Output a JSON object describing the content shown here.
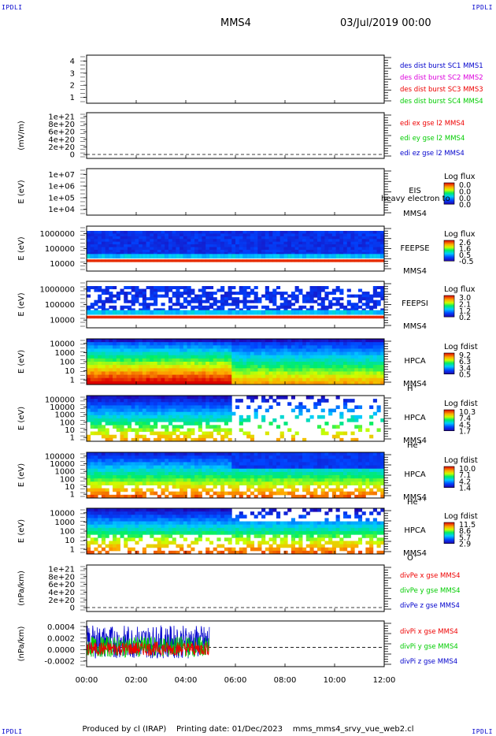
{
  "corner_label": "IPDLI",
  "header": {
    "spacecraft": "MMS4",
    "datetime": "03/Jul/2019 00:00"
  },
  "footer": {
    "produced_by": "Produced by cl (IRAP)",
    "printing_date": "Printing date: 01/Dec/2023",
    "script_name": "mms_mms4_srvy_vue_web2.cl"
  },
  "colors": {
    "frame": "#000000",
    "red": "#ee0000",
    "green": "#00cc00",
    "blue": "#0000cc",
    "magenta": "#dd00dd"
  },
  "chart_data": [
    {
      "type": "line",
      "panel": 1,
      "ylabel": "",
      "y_ticks": [
        "1",
        "2",
        "3",
        "4"
      ],
      "legend": [
        {
          "text": "des dist burst SC1 MMS1",
          "color": "#0000cc"
        },
        {
          "text": "des dist burst SC2 MMS2",
          "color": "#dd00dd"
        },
        {
          "text": "des dist burst SC3 MMS3",
          "color": "#ee0000"
        },
        {
          "text": "des dist burst SC4 MMS4",
          "color": "#00cc00"
        }
      ],
      "series": []
    },
    {
      "type": "line",
      "panel": 2,
      "ylabel": "(mV/m)",
      "y_ticks": [
        "0",
        "2e+20",
        "4e+20",
        "6e+20",
        "8e+20",
        "1e+21"
      ],
      "legend": [
        {
          "text": "edi ex gse l2 MMS4",
          "color": "#ee0000"
        },
        {
          "text": "edi ey gse l2 MMS4",
          "color": "#00cc00"
        },
        {
          "text": "edi ez gse l2 MMS4",
          "color": "#0000cc"
        }
      ],
      "series": []
    },
    {
      "type": "heatmap",
      "panel": 3,
      "ylabel": "E (eV)",
      "y_ticks": [
        "1e+04",
        "1e+05",
        "1e+06",
        "1e+07"
      ],
      "instrument": [
        "EIS",
        "MMS4"
      ],
      "overlay_text": "heavy electron to",
      "colorbar": {
        "title": "Log flux",
        "ticks": [
          "0.0",
          "0.0",
          "0.0",
          "0.0"
        ]
      }
    },
    {
      "type": "heatmap",
      "panel": 4,
      "ylabel": "E (eV)",
      "y_ticks": [
        "10000",
        "100000",
        "1000000"
      ],
      "instrument": [
        "FEEPSE",
        "MMS4"
      ],
      "colorbar": {
        "title": "Log flux",
        "ticks": [
          "2.6",
          "1.6",
          "0.5",
          "-0.5"
        ]
      }
    },
    {
      "type": "heatmap",
      "panel": 5,
      "ylabel": "E (eV)",
      "y_ticks": [
        "10000",
        "100000",
        "1000000"
      ],
      "instrument": [
        "FEEPSI",
        "MMS4"
      ],
      "colorbar": {
        "title": "Log flux",
        "ticks": [
          "3.0",
          "2.1",
          "1.2",
          "0.2"
        ]
      }
    },
    {
      "type": "heatmap",
      "panel": 6,
      "ylabel": "E (eV)",
      "y_ticks": [
        "1",
        "10",
        "100",
        "1000",
        "10000"
      ],
      "instrument": [
        "HPCA",
        "MMS4"
      ],
      "species": "H",
      "species_sup": "+",
      "colorbar": {
        "title": "Log fdist",
        "ticks": [
          "9.2",
          "6.3",
          "3.4",
          "0.5"
        ]
      }
    },
    {
      "type": "heatmap",
      "panel": 7,
      "ylabel": "E (eV)",
      "y_ticks": [
        "1",
        "10",
        "100",
        "1000",
        "10000",
        "100000"
      ],
      "instrument": [
        "HPCA",
        "MMS4"
      ],
      "species": "He",
      "species_sup": "+",
      "colorbar": {
        "title": "Log fdist",
        "ticks": [
          "10.3",
          "7.4",
          "4.5",
          "1.7"
        ]
      }
    },
    {
      "type": "heatmap",
      "panel": 8,
      "ylabel": "E (eV)",
      "y_ticks": [
        "1",
        "10",
        "100",
        "1000",
        "10000",
        "100000"
      ],
      "instrument": [
        "HPCA",
        "MMS4"
      ],
      "species": "He",
      "species_sup": "++",
      "colorbar": {
        "title": "Log fdist",
        "ticks": [
          "10.0",
          "7.1",
          "4.2",
          "1.4"
        ]
      }
    },
    {
      "type": "heatmap",
      "panel": 9,
      "ylabel": "E (eV)",
      "y_ticks": [
        "1",
        "10",
        "100",
        "1000",
        "10000"
      ],
      "instrument": [
        "HPCA",
        "MMS4"
      ],
      "species": "O",
      "species_sup": "+",
      "colorbar": {
        "title": "Log fdist",
        "ticks": [
          "11.5",
          "8.6",
          "5.7",
          "2.9"
        ]
      }
    },
    {
      "type": "line",
      "panel": 10,
      "ylabel": "(nPa/km)",
      "y_ticks": [
        "0",
        "2e+20",
        "4e+20",
        "6e+20",
        "8e+20",
        "1e+21"
      ],
      "legend": [
        {
          "text": "divPe x gse MMS4",
          "color": "#ee0000"
        },
        {
          "text": "divPe y gse MMS4",
          "color": "#00cc00"
        },
        {
          "text": "divPe z gse MMS4",
          "color": "#0000cc"
        }
      ],
      "series": []
    },
    {
      "type": "line",
      "panel": 11,
      "ylabel": "(nPa/km)",
      "y_ticks": [
        "-0.0002",
        "0.0000",
        "0.0002",
        "0.0004"
      ],
      "ylim": [
        -0.00035,
        0.00048
      ],
      "legend": [
        {
          "text": "divPi x gse MMS4",
          "color": "#ee0000"
        },
        {
          "text": "divPi y gse MMS4",
          "color": "#00cc00"
        },
        {
          "text": "divPi z gse MMS4",
          "color": "#0000cc"
        }
      ],
      "data_time_range_hours": [
        0,
        4.95
      ],
      "series": [
        {
          "name": "divPi x gse MMS4",
          "color": "#ee0000",
          "range": [
            -0.00015,
            0.0001
          ]
        },
        {
          "name": "divPi y gse MMS4",
          "color": "#00cc00",
          "range": [
            -0.00018,
            0.0002
          ]
        },
        {
          "name": "divPi z gse MMS4",
          "color": "#0000cc",
          "range": [
            -0.0002,
            0.0004
          ]
        }
      ]
    }
  ],
  "x_axis": {
    "ticks": [
      "00:00",
      "02:00",
      "04:00",
      "06:00",
      "08:00",
      "10:00",
      "12:00"
    ],
    "range_hours": [
      0,
      12
    ]
  }
}
